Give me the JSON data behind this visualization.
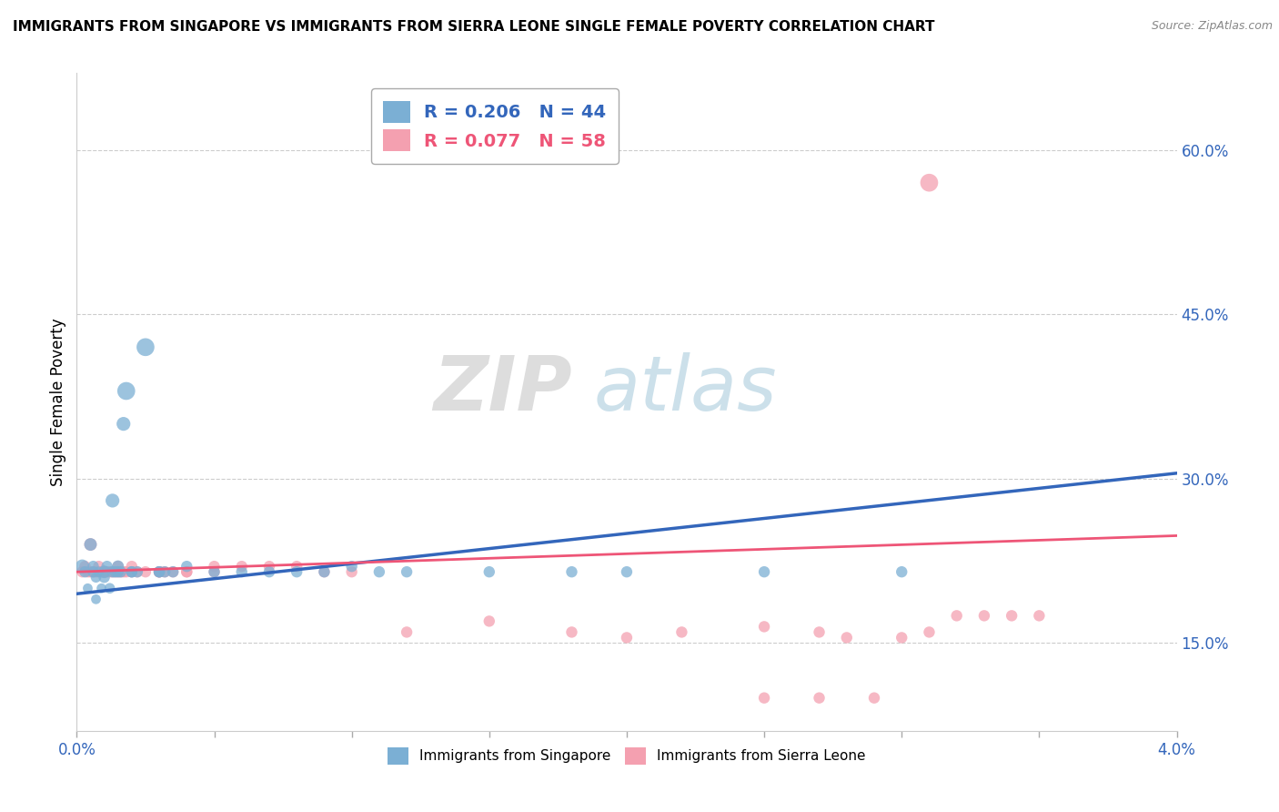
{
  "title": "IMMIGRANTS FROM SINGAPORE VS IMMIGRANTS FROM SIERRA LEONE SINGLE FEMALE POVERTY CORRELATION CHART",
  "source": "Source: ZipAtlas.com",
  "ylabel": "Single Female Poverty",
  "right_yticks": [
    0.15,
    0.3,
    0.45,
    0.6
  ],
  "right_yticklabels": [
    "15.0%",
    "30.0%",
    "45.0%",
    "60.0%"
  ],
  "xlim": [
    0.0,
    0.04
  ],
  "ylim": [
    0.07,
    0.67
  ],
  "singapore_R": 0.206,
  "singapore_N": 44,
  "sierraleone_R": 0.077,
  "sierraleone_N": 58,
  "color_singapore": "#7BAFD4",
  "color_sierraleone": "#F4A0B0",
  "color_trendline_singapore": "#3366BB",
  "color_trendline_sierraleone": "#EE5577",
  "watermark_zip": "ZIP",
  "watermark_atlas": "atlas",
  "legend_label_singapore": "Immigrants from Singapore",
  "legend_label_sierraleone": "Immigrants from Sierra Leone",
  "sg_trend_x": [
    0.0,
    0.04
  ],
  "sg_trend_y": [
    0.195,
    0.305
  ],
  "sl_trend_x": [
    0.0,
    0.04
  ],
  "sl_trend_y": [
    0.215,
    0.248
  ],
  "singapore_x": [
    0.0002,
    0.0003,
    0.0004,
    0.0005,
    0.0006,
    0.0006,
    0.0007,
    0.0007,
    0.0008,
    0.0009,
    0.001,
    0.001,
    0.0011,
    0.0012,
    0.0013,
    0.0013,
    0.0014,
    0.0015,
    0.0015,
    0.0016,
    0.0017,
    0.0018,
    0.002,
    0.002,
    0.0022,
    0.0025,
    0.003,
    0.003,
    0.0032,
    0.0035,
    0.004,
    0.005,
    0.006,
    0.007,
    0.008,
    0.009,
    0.01,
    0.011,
    0.012,
    0.015,
    0.018,
    0.02,
    0.025,
    0.03
  ],
  "singapore_y": [
    0.22,
    0.215,
    0.2,
    0.24,
    0.215,
    0.22,
    0.21,
    0.19,
    0.215,
    0.2,
    0.21,
    0.215,
    0.22,
    0.2,
    0.215,
    0.28,
    0.215,
    0.22,
    0.215,
    0.215,
    0.35,
    0.38,
    0.215,
    0.215,
    0.215,
    0.42,
    0.215,
    0.215,
    0.215,
    0.215,
    0.22,
    0.215,
    0.215,
    0.215,
    0.215,
    0.215,
    0.22,
    0.215,
    0.215,
    0.215,
    0.215,
    0.215,
    0.215,
    0.215
  ],
  "singapore_s": [
    120,
    80,
    60,
    100,
    80,
    80,
    70,
    60,
    70,
    60,
    80,
    100,
    80,
    70,
    80,
    120,
    80,
    90,
    80,
    80,
    120,
    200,
    80,
    80,
    80,
    200,
    80,
    80,
    80,
    80,
    80,
    80,
    80,
    80,
    80,
    80,
    80,
    80,
    80,
    80,
    80,
    80,
    80,
    80
  ],
  "sierraleone_x": [
    0.0002,
    0.0003,
    0.0004,
    0.0005,
    0.0005,
    0.0006,
    0.0007,
    0.0008,
    0.0008,
    0.0009,
    0.001,
    0.001,
    0.001,
    0.0011,
    0.0012,
    0.0013,
    0.0014,
    0.0015,
    0.0015,
    0.0016,
    0.0017,
    0.0018,
    0.002,
    0.002,
    0.0022,
    0.0025,
    0.003,
    0.003,
    0.003,
    0.0032,
    0.0035,
    0.004,
    0.004,
    0.005,
    0.005,
    0.006,
    0.007,
    0.008,
    0.009,
    0.01,
    0.012,
    0.015,
    0.018,
    0.02,
    0.022,
    0.025,
    0.027,
    0.028,
    0.03,
    0.031,
    0.032,
    0.033,
    0.034,
    0.035,
    0.025,
    0.027,
    0.029,
    0.031
  ],
  "sierraleone_y": [
    0.215,
    0.22,
    0.215,
    0.24,
    0.215,
    0.215,
    0.215,
    0.22,
    0.215,
    0.215,
    0.215,
    0.215,
    0.215,
    0.215,
    0.215,
    0.215,
    0.215,
    0.22,
    0.215,
    0.215,
    0.215,
    0.215,
    0.22,
    0.215,
    0.215,
    0.215,
    0.215,
    0.215,
    0.215,
    0.215,
    0.215,
    0.215,
    0.215,
    0.22,
    0.215,
    0.22,
    0.22,
    0.22,
    0.215,
    0.215,
    0.16,
    0.17,
    0.16,
    0.155,
    0.16,
    0.165,
    0.16,
    0.155,
    0.155,
    0.16,
    0.175,
    0.175,
    0.175,
    0.175,
    0.1,
    0.1,
    0.1,
    0.57
  ],
  "sierraleone_s": [
    80,
    80,
    80,
    100,
    80,
    80,
    80,
    80,
    80,
    80,
    80,
    80,
    80,
    80,
    80,
    80,
    80,
    80,
    80,
    80,
    80,
    80,
    80,
    80,
    80,
    80,
    80,
    80,
    80,
    80,
    80,
    80,
    80,
    80,
    80,
    80,
    80,
    80,
    80,
    80,
    80,
    80,
    80,
    80,
    80,
    80,
    80,
    80,
    80,
    80,
    80,
    80,
    80,
    80,
    80,
    80,
    80,
    200
  ]
}
